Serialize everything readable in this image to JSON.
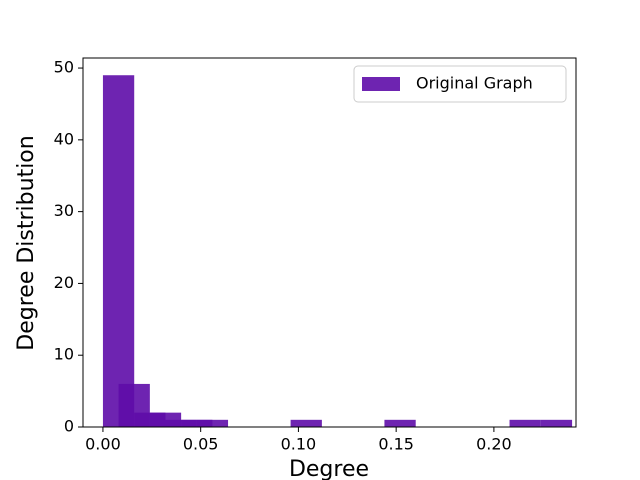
{
  "chart_data": {
    "type": "histogram",
    "xlabel": "Degree",
    "ylabel": "Degree Distribution",
    "series": [
      {
        "name": "Original Graph",
        "color": "#5e0ca8",
        "bins": [
          0,
          0.016,
          0.032,
          0.048,
          0.064,
          0.08,
          0.096,
          0.112,
          0.128,
          0.144,
          0.16,
          0.176,
          0.192,
          0.208,
          0.224,
          0.24
        ],
        "values": [
          49,
          2,
          1,
          1,
          0,
          0,
          1,
          0,
          0,
          1,
          0,
          0,
          0,
          1,
          1
        ]
      },
      {
        "color": "#5e0ca8",
        "bins": [
          0.008,
          0.024,
          0.04,
          0.056
        ],
        "values": [
          6,
          2,
          1
        ]
      }
    ],
    "xlim": [
      -0.0102,
      0.242
    ],
    "ylim": [
      0,
      51.4
    ],
    "xticks": [
      {
        "value": 0,
        "label": "0.00"
      },
      {
        "value": 0.05,
        "label": "0.05"
      },
      {
        "value": 0.1,
        "label": "0.10"
      },
      {
        "value": 0.15,
        "label": "0.15"
      },
      {
        "value": 0.2,
        "label": "0.20"
      }
    ],
    "yticks": [
      0,
      10,
      20,
      30,
      40,
      50
    ],
    "legend": "upper right",
    "grid": false
  }
}
